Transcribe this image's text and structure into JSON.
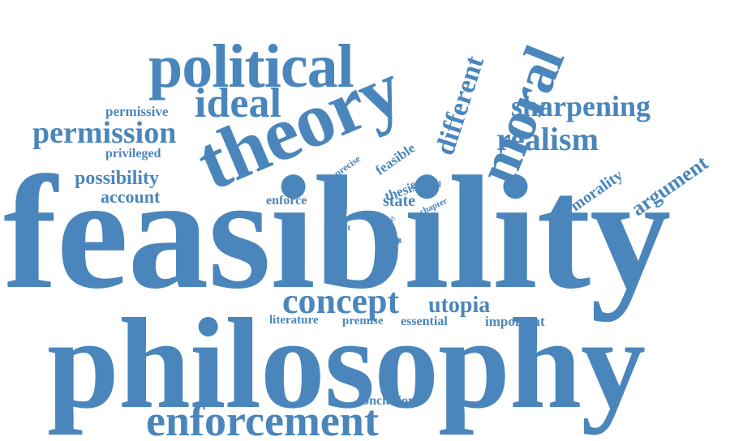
{
  "colors": {
    "word": "#4a86bb",
    "background": "#ffffff"
  },
  "words": [
    {
      "key": "feasibility",
      "text": "feasibility"
    },
    {
      "key": "philosophy",
      "text": "philosophy"
    },
    {
      "key": "theory",
      "text": "theory"
    },
    {
      "key": "political",
      "text": "political"
    },
    {
      "key": "moral",
      "text": "moral"
    },
    {
      "key": "enforcement",
      "text": "enforcement"
    },
    {
      "key": "concept",
      "text": "concept"
    },
    {
      "key": "ideal",
      "text": "ideal"
    },
    {
      "key": "sharpening",
      "text": "sharpening"
    },
    {
      "key": "permission",
      "text": "permission"
    },
    {
      "key": "realism",
      "text": "realism"
    },
    {
      "key": "different",
      "text": "different"
    },
    {
      "key": "argument",
      "text": "argument"
    },
    {
      "key": "possibility",
      "text": "possibility"
    },
    {
      "key": "account",
      "text": "account"
    },
    {
      "key": "utopia",
      "text": "utopia"
    },
    {
      "key": "morality",
      "text": "morality"
    },
    {
      "key": "permissive",
      "text": "permissive"
    },
    {
      "key": "privileged",
      "text": "privileged"
    },
    {
      "key": "feasible",
      "text": "feasible"
    },
    {
      "key": "thesis",
      "text": "thesis"
    },
    {
      "key": "state",
      "text": "state"
    },
    {
      "key": "enforce",
      "text": "enforce"
    },
    {
      "key": "role",
      "text": "role"
    },
    {
      "key": "important",
      "text": "important"
    },
    {
      "key": "essential",
      "text": "essential"
    },
    {
      "key": "literature",
      "text": "literature"
    },
    {
      "key": "premise",
      "text": "premise"
    },
    {
      "key": "conclusion",
      "text": "conclusion"
    },
    {
      "key": "constrain",
      "text": "constrain"
    },
    {
      "key": "general",
      "text": "general"
    },
    {
      "key": "chapter",
      "text": "chapter"
    },
    {
      "key": "precise",
      "text": "precise"
    },
    {
      "key": "limit",
      "text": "limit"
    },
    {
      "key": "single",
      "text": "single"
    },
    {
      "key": "useful",
      "text": "useful"
    },
    {
      "key": "fact",
      "text": "fact"
    },
    {
      "key": "way",
      "text": "way"
    }
  ]
}
